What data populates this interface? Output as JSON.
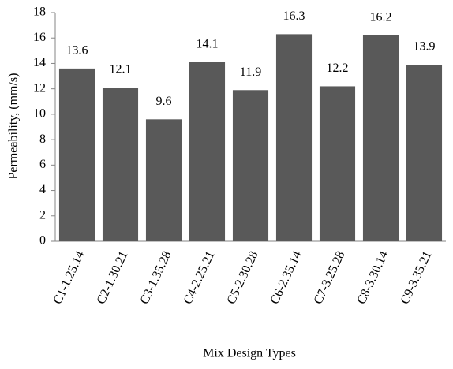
{
  "chart_data": {
    "type": "bar",
    "xlabel": "Mix Design Types",
    "ylabel": "Permeability, (mm/s)",
    "categories": [
      "C1-1.25.14",
      "C2-1.30.21",
      "C3-1.35.28",
      "C4-2.25.21",
      "C5-2.30.28",
      "C6-2.35.14",
      "C7-3.25.28",
      "C8-3.30.14",
      "C9-3.35.21"
    ],
    "values": [
      13.6,
      12.1,
      9.6,
      14.1,
      11.9,
      16.3,
      12.2,
      16.2,
      13.9
    ],
    "color": "#595959",
    "ylim": [
      0,
      18
    ],
    "yticks": [
      0,
      2,
      4,
      6,
      8,
      10,
      12,
      14,
      16,
      18
    ],
    "grid": false
  }
}
